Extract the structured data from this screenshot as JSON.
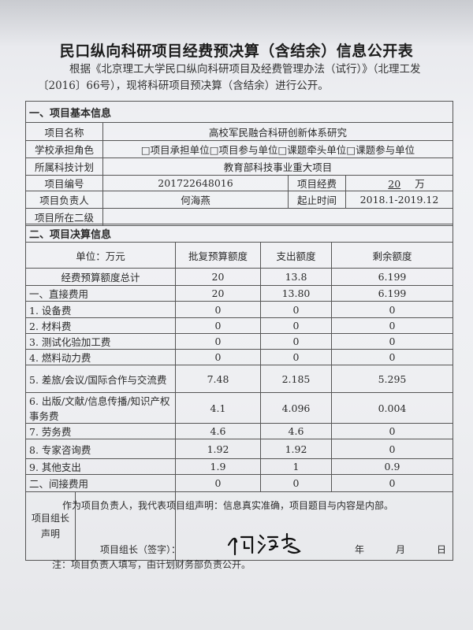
{
  "title": "民口纵向科研项目经费预决算（含结余）信息公开表",
  "intro": "根据《北京理工大学民口纵向科研项目及经费管理办法（试行）》（北理工发〔2016〕66号），现将科研项目预决算（含结余）进行公开。",
  "section1": {
    "heading": "一、项目基本信息",
    "name_label": "项目名称",
    "name_value": "高校军民融合科研创新体系研究",
    "role_label": "学校承担角色",
    "role_options": [
      "□项目承担单位",
      "□项目参与单位",
      "□课题牵头单位",
      "□课题参与单位"
    ],
    "plan_label": "所属科技计划",
    "plan_value": "教育部科技事业重大项目",
    "number_label": "项目编号",
    "number_value": "201722648016",
    "funding_label": "项目经费",
    "funding_value": "20",
    "funding_unit": "万",
    "manager_label": "项目负责人",
    "manager_value": "何海燕",
    "period_label": "起止时间",
    "period_value": "2018.1-2019.12",
    "dept_label": "项目所在二级",
    "dept_value": ""
  },
  "section2": {
    "heading": "二、项目决算信息",
    "columns": [
      "单位：万元",
      "批复预算额度",
      "支出额度",
      "剩余额度"
    ],
    "rows": [
      {
        "item": "经费预算额度总计",
        "budget": "20",
        "spent": "13.8",
        "remaining": "6.199"
      },
      {
        "item": "一、直接费用",
        "budget": "20",
        "spent": "13.80",
        "remaining": "6.199"
      },
      {
        "item": "1. 设备费",
        "budget": "0",
        "spent": "0",
        "remaining": "0"
      },
      {
        "item": "2. 材料费",
        "budget": "0",
        "spent": "0",
        "remaining": "0"
      },
      {
        "item": "3. 测试化验加工费",
        "budget": "0",
        "spent": "0",
        "remaining": "0"
      },
      {
        "item": "4. 燃料动力费",
        "budget": "0",
        "spent": "0",
        "remaining": "0"
      },
      {
        "item": "5. 差旅/会议/国际合作与交流费",
        "budget": "7.48",
        "spent": "2.185",
        "remaining": "5.295"
      },
      {
        "item": "6. 出版/文献/信息传播/知识产权事务费",
        "budget": "4.1",
        "spent": "4.096",
        "remaining": "0.004"
      },
      {
        "item": "7. 劳务费",
        "budget": "4.6",
        "spent": "4.6",
        "remaining": "0"
      },
      {
        "item": "8. 专家咨询费",
        "budget": "1.92",
        "spent": "1.92",
        "remaining": "0"
      },
      {
        "item": "9. 其他支出",
        "budget": "1.9",
        "spent": "1",
        "remaining": "0.9"
      },
      {
        "item": "二、间接费用",
        "budget": "0",
        "spent": "0",
        "remaining": "0"
      }
    ]
  },
  "declaration": {
    "label": "项目组长声明",
    "text": "作为项目负责人，我代表项目组声明：信息真实准确，项目题目与内容是内部。",
    "sign_label": "项目组长（签字）：",
    "signature": "何海燕",
    "year": "年",
    "month": "月",
    "day": "日"
  },
  "note": "注：项目负责人填写，由计划财务部负责公开。"
}
